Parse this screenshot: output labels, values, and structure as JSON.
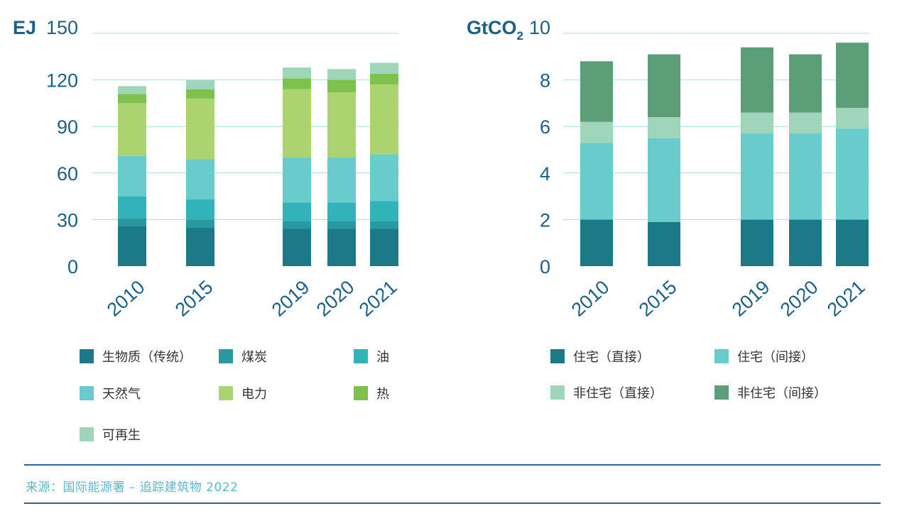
{
  "chart_data": [
    {
      "type": "bar",
      "stacked": true,
      "unit_label": "EJ",
      "categories": [
        "2010",
        "2015",
        "2019",
        "2020",
        "2021"
      ],
      "ylim": [
        0,
        150
      ],
      "yticks": [
        0,
        30,
        60,
        90,
        120,
        150
      ],
      "grid": true,
      "legend_position": "bottom",
      "series": [
        {
          "name": "生物质（传统）",
          "color": "#1b7a86",
          "values": [
            26,
            25,
            24,
            24,
            24
          ]
        },
        {
          "name": "煤炭",
          "color": "#27999f",
          "values": [
            5,
            5,
            5,
            5,
            5
          ]
        },
        {
          "name": "油",
          "color": "#32b2b9",
          "values": [
            14,
            13,
            12,
            12,
            13
          ]
        },
        {
          "name": "天然气",
          "color": "#68cbcc",
          "values": [
            26,
            26,
            29,
            29,
            30
          ]
        },
        {
          "name": "电力",
          "color": "#abd36f",
          "values": [
            34,
            39,
            44,
            42,
            45
          ]
        },
        {
          "name": "热",
          "color": "#7ec14c",
          "values": [
            6,
            6,
            7,
            8,
            7
          ]
        },
        {
          "name": "可再生",
          "color": "#9fd5b9",
          "values": [
            5,
            6,
            7,
            7,
            7
          ]
        }
      ]
    },
    {
      "type": "bar",
      "stacked": true,
      "unit_label": "GtCO",
      "unit_subscript": "2",
      "categories": [
        "2010",
        "2015",
        "2019",
        "2020",
        "2021"
      ],
      "ylim": [
        0,
        10
      ],
      "yticks": [
        0,
        2,
        4,
        6,
        8,
        10
      ],
      "grid": true,
      "legend_position": "bottom",
      "series": [
        {
          "name": "住宅（直接）",
          "color": "#1b7a86",
          "values": [
            2.0,
            1.9,
            2.0,
            2.0,
            2.0
          ]
        },
        {
          "name": "住宅（间接）",
          "color": "#68cbcc",
          "values": [
            3.3,
            3.6,
            3.7,
            3.7,
            3.9
          ]
        },
        {
          "name": "非住宅（直接）",
          "color": "#9fd5b9",
          "values": [
            0.9,
            0.9,
            0.9,
            0.9,
            0.9
          ]
        },
        {
          "name": "非住宅（间接）",
          "color": "#5b9e78",
          "values": [
            2.6,
            2.7,
            2.8,
            2.5,
            2.8
          ]
        }
      ]
    }
  ],
  "source_text": "来源：国际能源署 – 追踪建筑物 2022"
}
